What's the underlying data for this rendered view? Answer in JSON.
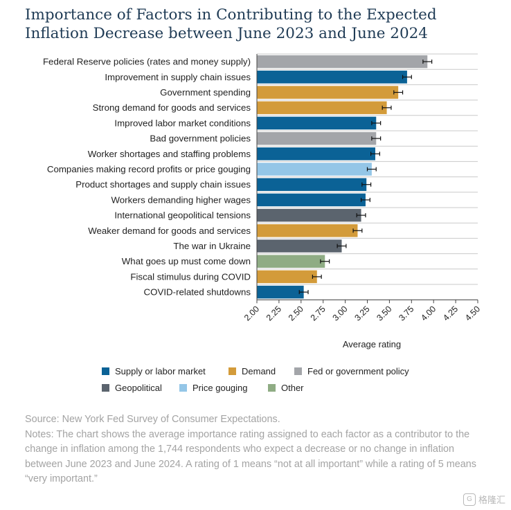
{
  "title": {
    "line1": "Importance of Factors in Contributing to the Expected",
    "line2": "Inflation Decrease between June 2023 and June 2024"
  },
  "chart_data": {
    "type": "bar",
    "orientation": "horizontal",
    "xlabel": "Average rating",
    "xlim": [
      2.0,
      4.5
    ],
    "x_ticks": [
      "2.00",
      "2.25",
      "2.50",
      "2.75",
      "3.00",
      "3.25",
      "3.50",
      "3.75",
      "4.00",
      "4.25",
      "4.50"
    ],
    "grid": "horizontal row lines",
    "error_bars": true,
    "categories": [
      "Federal Reserve policies (rates and money supply)",
      "Improvement in supply chain issues",
      "Government spending",
      "Strong demand for goods and services",
      "Improved labor market conditions",
      "Bad government policies",
      "Worker shortages and staffing problems",
      "Companies making record profits or price gouging",
      "Product shortages and supply chain issues",
      "Workers demanding higher wages",
      "International geopolitical tensions",
      "Weaker demand for goods and services",
      "The war in Ukraine",
      "What goes up must come down",
      "Fiscal stimulus during COVID",
      "COVID-related shutdowns"
    ],
    "values": [
      3.93,
      3.7,
      3.6,
      3.47,
      3.35,
      3.35,
      3.34,
      3.3,
      3.24,
      3.23,
      3.18,
      3.14,
      2.96,
      2.77,
      2.68,
      2.53
    ],
    "errors": [
      0.05,
      0.05,
      0.05,
      0.05,
      0.05,
      0.05,
      0.05,
      0.05,
      0.05,
      0.05,
      0.05,
      0.05,
      0.05,
      0.05,
      0.05,
      0.05
    ],
    "groups": [
      "Fed or government policy",
      "Supply or labor market",
      "Demand",
      "Demand",
      "Supply or labor market",
      "Fed or government policy",
      "Supply or labor market",
      "Price gouging",
      "Supply or labor market",
      "Supply or labor market",
      "Geopolitical",
      "Demand",
      "Geopolitical",
      "Other",
      "Demand",
      "Supply or labor market"
    ],
    "legend": [
      {
        "name": "Supply or labor market",
        "color": "#0b6296"
      },
      {
        "name": "Demand",
        "color": "#d39b3a"
      },
      {
        "name": "Fed or government policy",
        "color": "#a3a5a9"
      },
      {
        "name": "Geopolitical",
        "color": "#5b646e"
      },
      {
        "name": "Price gouging",
        "color": "#94c6e7"
      },
      {
        "name": "Other",
        "color": "#8fac84"
      }
    ],
    "legend_position": "bottom"
  },
  "source": {
    "line": "Source: New York Fed Survey of Consumer Expectations.",
    "notes": "Notes: The chart shows the average importance rating assigned to each factor as a contributor to the change in inflation among the 1,744 respondents who expect a decrease or no change in inflation between June 2023 and June 2024. A rating of 1 means “not at all important” while a rating of 5 means “very important.”"
  },
  "watermark": {
    "text": "格隆汇",
    "logo": "G"
  }
}
